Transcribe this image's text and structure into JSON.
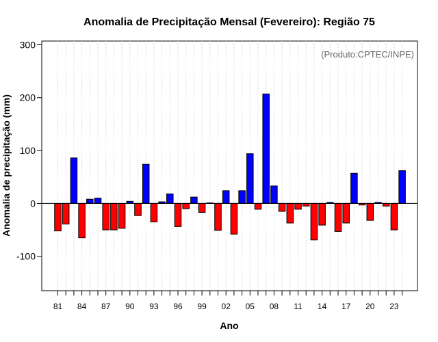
{
  "chart_data": {
    "type": "bar",
    "title": "Anomalia de Precipitação Mensal (Fevereiro): Região 75",
    "xlabel": "Ano",
    "ylabel": "Anomalia de precipitação (mm)",
    "credit": "(Produto:CPTEC/INPE)",
    "ylim": [
      -165,
      307
    ],
    "yticks": [
      "-100",
      "0",
      "100",
      "200",
      "300"
    ],
    "ytick_values": [
      -100,
      0,
      100,
      200,
      300
    ],
    "xtick_labels": [
      "81",
      "84",
      "87",
      "90",
      "93",
      "96",
      "99",
      "02",
      "05",
      "08",
      "11",
      "14",
      "17",
      "20",
      "23"
    ],
    "categories": [
      "1981",
      "1982",
      "1983",
      "1984",
      "1985",
      "1986",
      "1987",
      "1988",
      "1989",
      "1990",
      "1991",
      "1992",
      "1993",
      "1994",
      "1995",
      "1996",
      "1997",
      "1998",
      "1999",
      "2000",
      "2001",
      "2002",
      "2003",
      "2004",
      "2005",
      "2006",
      "2007",
      "2008",
      "2009",
      "2010",
      "2011",
      "2012",
      "2013",
      "2014",
      "2015",
      "2016",
      "2017",
      "2018",
      "2019",
      "2020",
      "2021",
      "2022",
      "2023",
      "2024"
    ],
    "values": [
      -52,
      -39,
      86,
      -65,
      8,
      10,
      -50,
      -50,
      -47,
      4,
      -23,
      74,
      -35,
      3,
      18,
      -44,
      -10,
      12,
      -17,
      1,
      -51,
      24,
      -58,
      24,
      94,
      -11,
      207,
      33,
      -15,
      -37,
      -11,
      -5,
      -69,
      -41,
      2,
      -53,
      -37,
      57,
      -3,
      -32,
      2,
      -5,
      -50,
      62
    ],
    "positive_color": "#0000ff",
    "negative_color": "#ff0000",
    "grid": "vertical-dotted"
  }
}
